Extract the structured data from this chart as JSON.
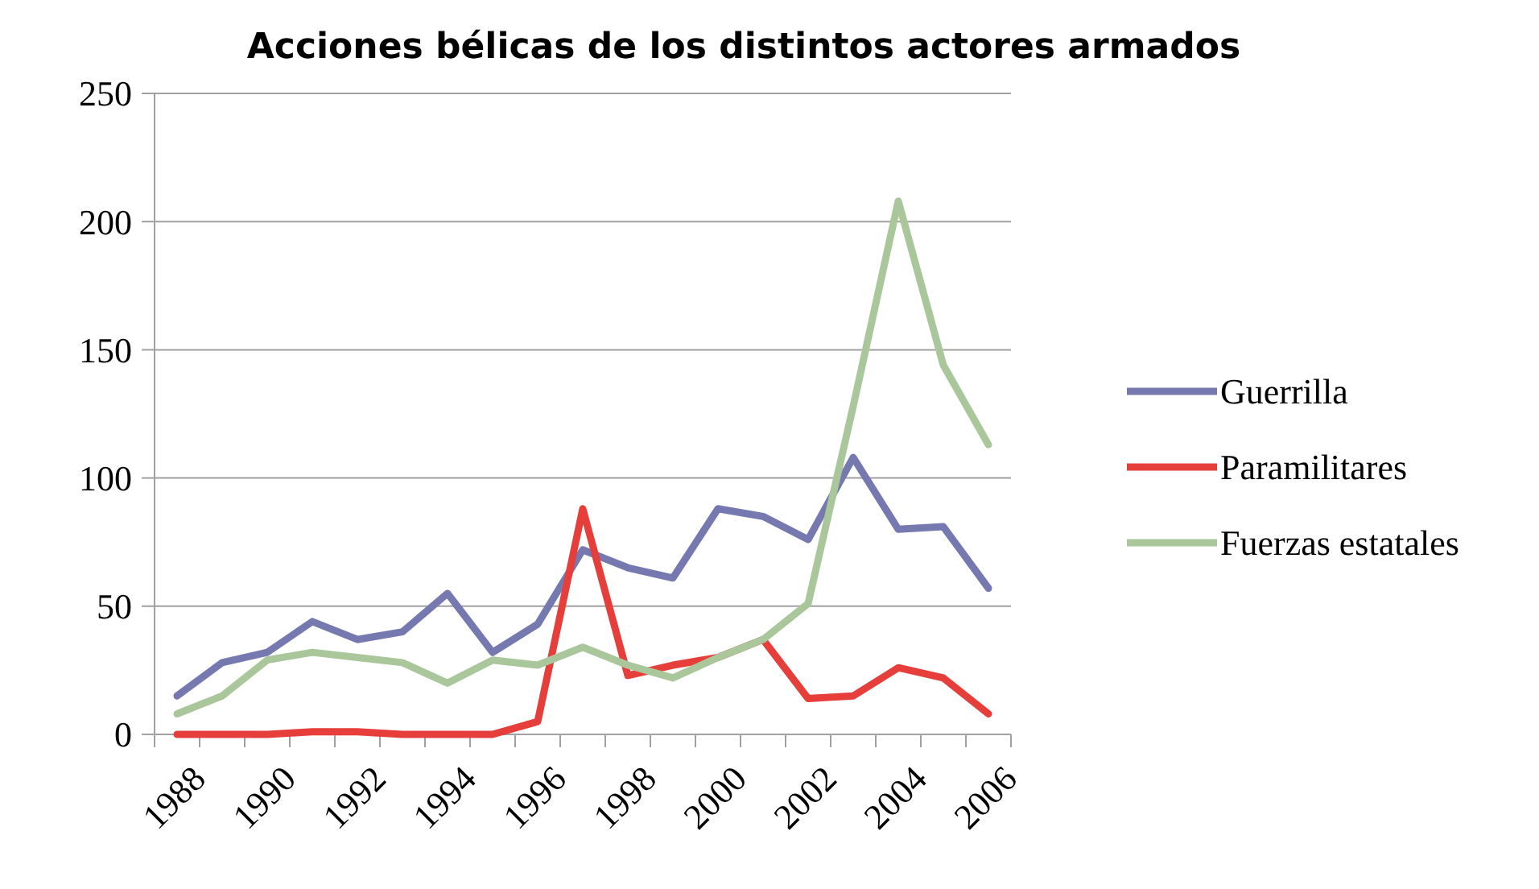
{
  "chart_data": {
    "type": "line",
    "title": "Acciones bélicas de los distintos actores armados",
    "categories": [
      "1988",
      null,
      "1990",
      null,
      "1992",
      null,
      "1994",
      null,
      "1996",
      null,
      "1998",
      null,
      "2000",
      null,
      "2002",
      null,
      "2004",
      null,
      "2006"
    ],
    "ylim": [
      0,
      250
    ],
    "yticks": [
      0,
      50,
      100,
      150,
      200,
      250
    ],
    "grid": "y",
    "legend": "right",
    "line_style": "solid",
    "series": [
      {
        "name": "Guerrilla",
        "color": "#7579b0",
        "values": [
          15,
          28,
          32,
          44,
          37,
          40,
          55,
          32,
          43,
          72,
          65,
          61,
          88,
          85,
          76,
          108,
          80,
          81,
          57
        ]
      },
      {
        "name": "Paramilitares",
        "color": "#e53e3b",
        "values": [
          0,
          0,
          0,
          1,
          1,
          0,
          0,
          0,
          5,
          88,
          23,
          27,
          30,
          37,
          14,
          15,
          26,
          22,
          8
        ]
      },
      {
        "name": "Fuerzas estatales",
        "color": "#a9c79a",
        "values": [
          8,
          15,
          29,
          32,
          30,
          28,
          20,
          29,
          27,
          34,
          27,
          22,
          30,
          37,
          51,
          128,
          208,
          144,
          113
        ]
      }
    ]
  }
}
